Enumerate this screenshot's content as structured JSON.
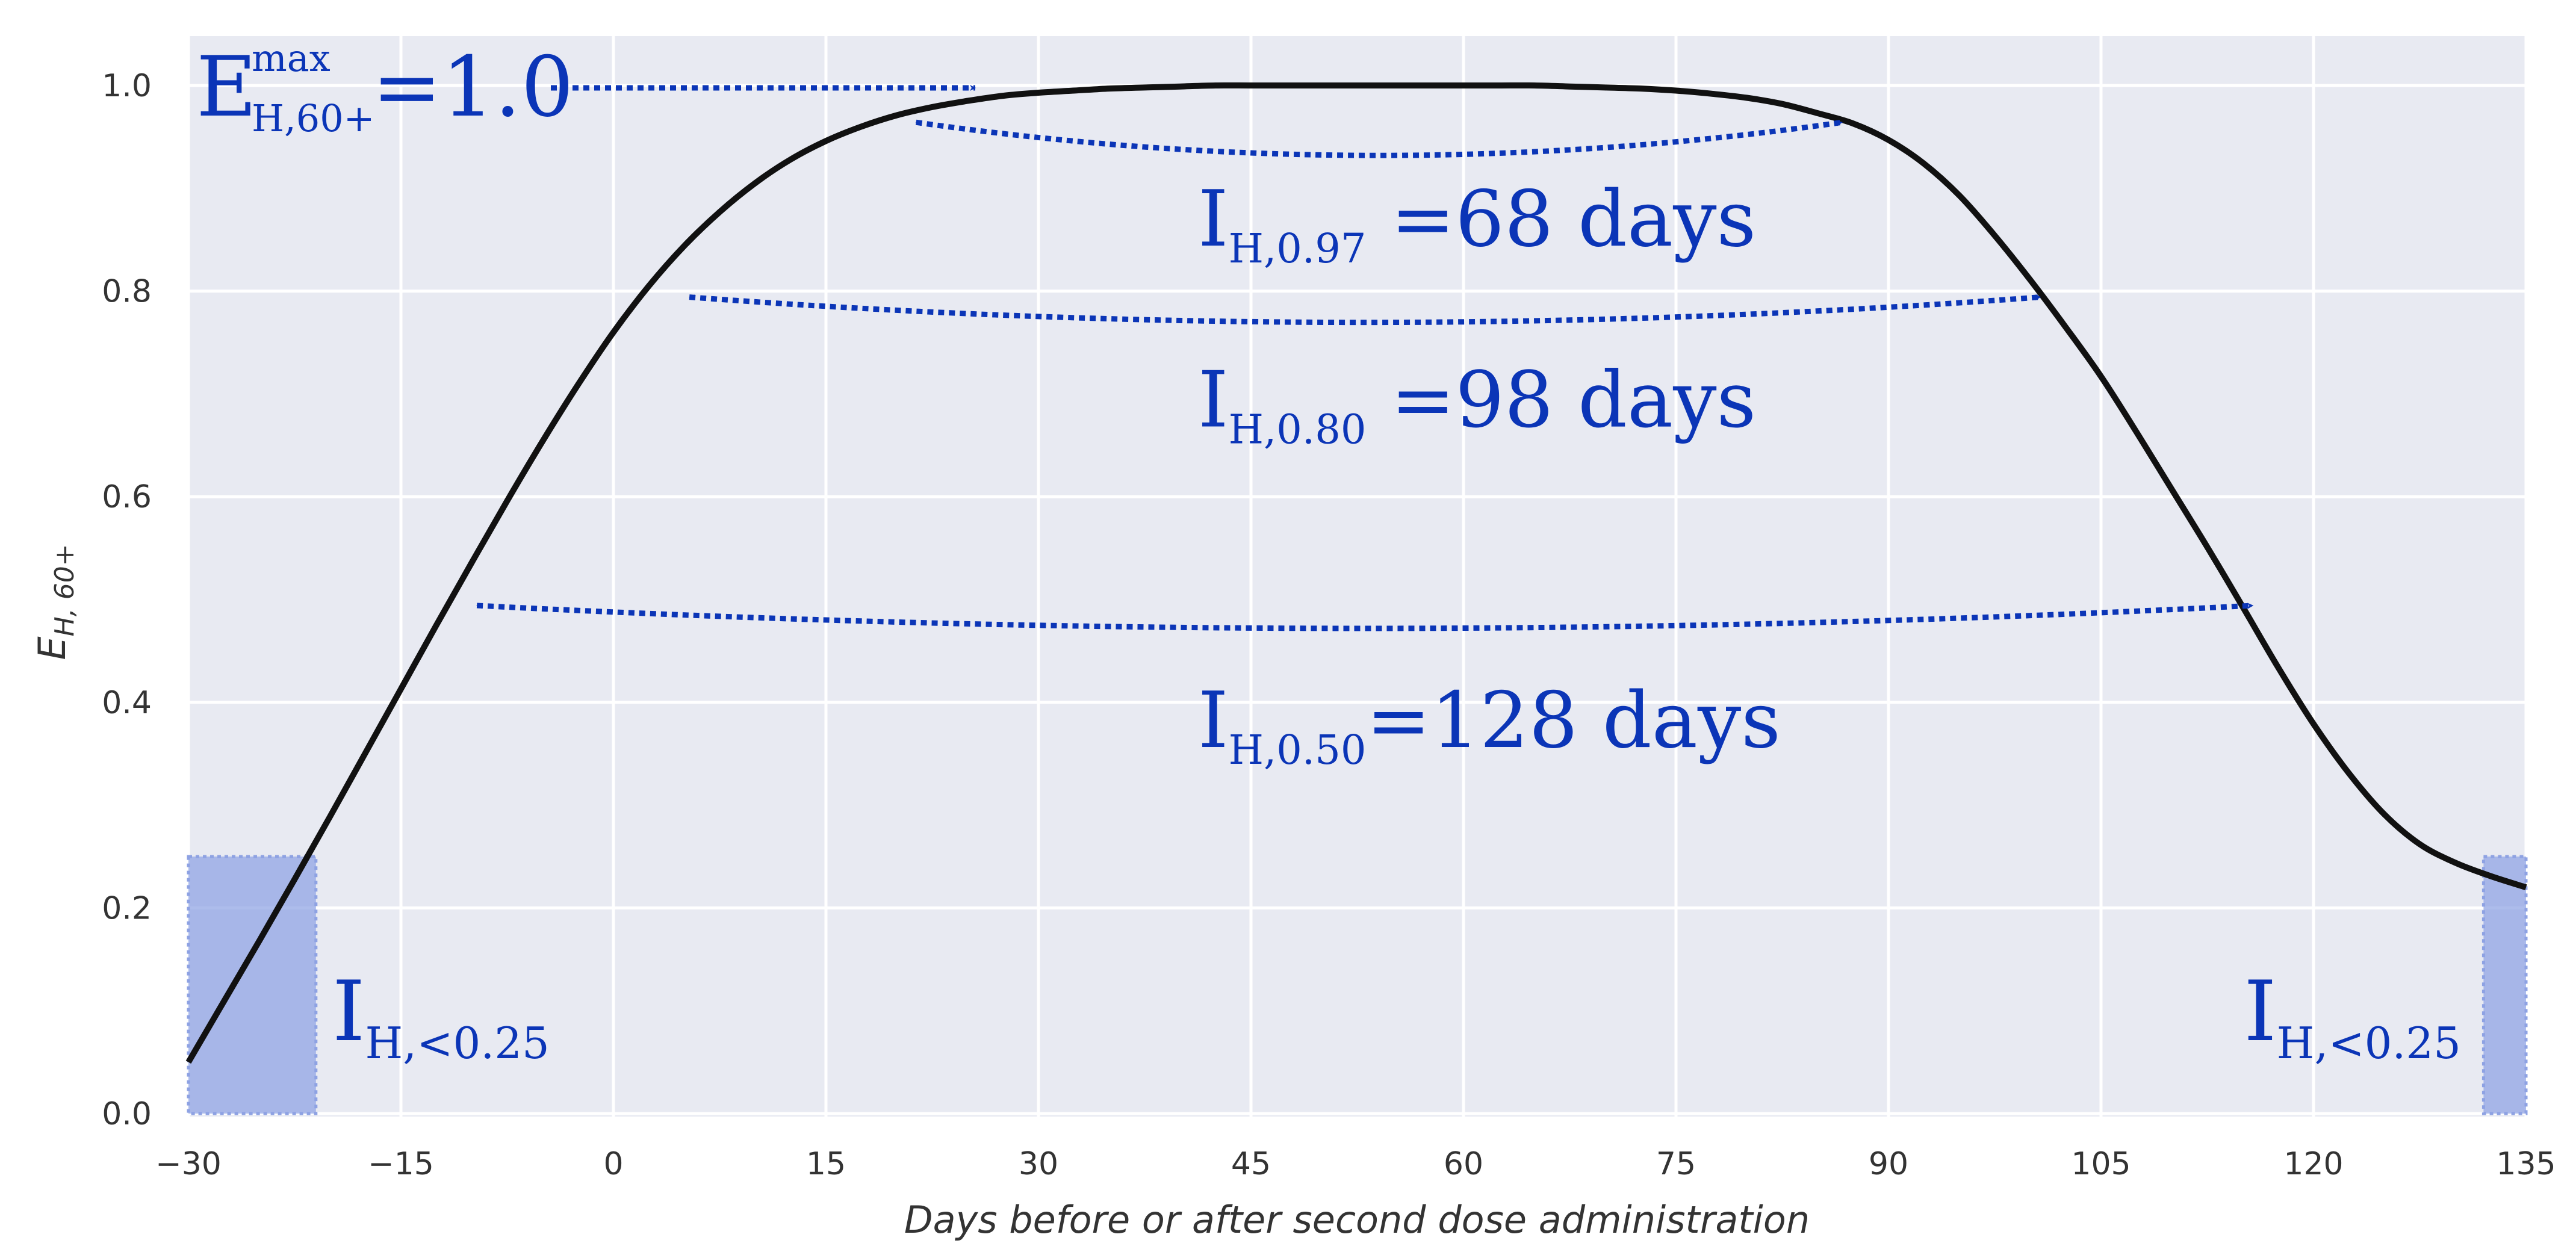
{
  "chart_data": {
    "type": "line",
    "xlabel": "Days before or after second dose administration",
    "ylabel": "E_{H, 60+}",
    "ylabel_main": "E",
    "ylabel_sub": "H, 60+",
    "xlim": [
      -30,
      135
    ],
    "ylim": [
      0.0,
      1.05
    ],
    "xticks": [
      -30,
      -15,
      0,
      15,
      30,
      45,
      60,
      75,
      90,
      105,
      120,
      135
    ],
    "xtick_labels": [
      "−30",
      "−15",
      "0",
      "15",
      "30",
      "45",
      "60",
      "75",
      "90",
      "105",
      "120",
      "135"
    ],
    "yticks": [
      0.0,
      0.2,
      0.4,
      0.6,
      0.8,
      1.0
    ],
    "ytick_labels": [
      "0.0",
      "0.2",
      "0.4",
      "0.6",
      "0.8",
      "1.0"
    ],
    "grid": true,
    "series": [
      {
        "x": [
          -30,
          -27.5,
          -25,
          -22.5,
          -20,
          -17.5,
          -15,
          -12.5,
          -10,
          -7.5,
          -5,
          -2.5,
          0,
          2.5,
          5,
          7.5,
          10,
          12.5,
          15,
          17.5,
          20,
          22.5,
          25,
          27.5,
          30,
          32.5,
          35,
          37.5,
          40,
          42.5,
          45,
          47.5,
          50,
          52.5,
          55,
          57.5,
          60,
          62.5,
          65,
          67.5,
          70,
          72.5,
          75,
          77.5,
          80,
          82.5,
          85,
          87.5,
          90,
          92.5,
          95,
          97.5,
          100,
          102.5,
          105,
          107.5,
          110,
          112.5,
          115,
          117.5,
          120,
          122.5,
          125,
          127.5,
          130,
          132.5,
          135
        ],
        "y": [
          0.05,
          0.109,
          0.168,
          0.228,
          0.289,
          0.351,
          0.413,
          0.475,
          0.536,
          0.596,
          0.654,
          0.709,
          0.76,
          0.805,
          0.844,
          0.877,
          0.905,
          0.928,
          0.946,
          0.96,
          0.971,
          0.979,
          0.985,
          0.99,
          0.993,
          0.995,
          0.997,
          0.998,
          0.999,
          1.0,
          1.0,
          1.0,
          1.0,
          1.0,
          1.0,
          1.0,
          1.0,
          1.0,
          1.0,
          0.999,
          0.998,
          0.997,
          0.995,
          0.992,
          0.988,
          0.982,
          0.973,
          0.963,
          0.947,
          0.924,
          0.893,
          0.854,
          0.811,
          0.765,
          0.717,
          0.663,
          0.607,
          0.551,
          0.493,
          0.434,
          0.379,
          0.331,
          0.291,
          0.262,
          0.244,
          0.231,
          0.22
        ],
        "color": "#111111"
      }
    ],
    "shaded_regions": [
      {
        "x0": -30,
        "x1": -21,
        "y0": 0.0,
        "y1": 0.25,
        "color": "#8ea2e3"
      },
      {
        "x0": 132,
        "x1": 135,
        "y0": 0.0,
        "y1": 0.25,
        "color": "#8ea2e3"
      }
    ],
    "intervals": [
      {
        "x0": 20,
        "x1": 88,
        "y": 0.97,
        "main": "I",
        "sub": "H,0.97",
        "label": " =68 days"
      },
      {
        "x0": 4,
        "x1": 102,
        "y": 0.8,
        "main": "I",
        "sub": "H,0.80",
        "label": " =98 days"
      },
      {
        "x0": -11,
        "x1": 117,
        "y": 0.5,
        "main": "I",
        "sub": "H,0.50",
        "label": "=128 days"
      }
    ],
    "max_annotation": {
      "main": "E",
      "sub": "H,60+",
      "sup": "max",
      "value": "=1.0"
    },
    "low_labels": [
      {
        "main": "I",
        "sub": "H,<0.25"
      },
      {
        "main": "I",
        "sub": "H,<0.25"
      }
    ],
    "colors": {
      "plot_bg": "#e8eaf2",
      "grid": "#ffffff",
      "annotation": "#0b35b7",
      "curve": "#111111",
      "shade": "#8ea2e3"
    }
  }
}
